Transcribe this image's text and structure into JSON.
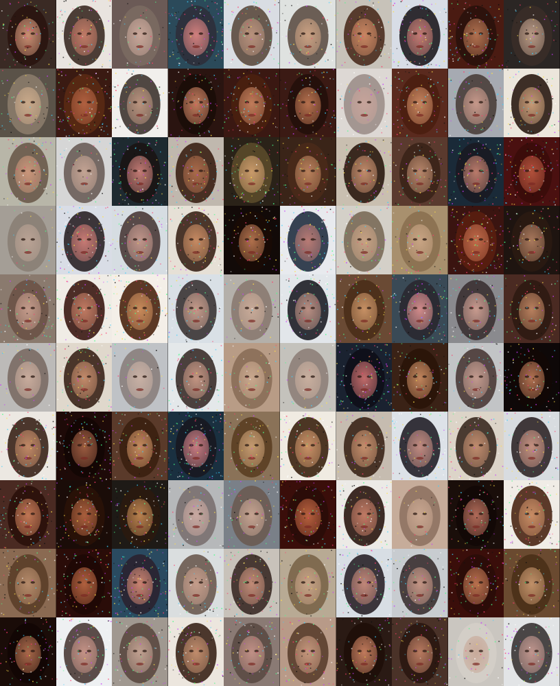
{
  "grid": {
    "rows": 10,
    "columns": 10,
    "tiles": [
      {
        "bg": "#3a2a24",
        "skin": "#c98e72",
        "hair": "#2a1410",
        "noise": 0.55
      },
      {
        "bg": "#e9e4df",
        "skin": "#c07a66",
        "hair": "#3b2a23",
        "noise": 0.6
      },
      {
        "bg": "#6b5a56",
        "skin": "#c9a79a",
        "hair": "#7b6a62",
        "noise": 0.25
      },
      {
        "bg": "#2b4a5a",
        "skin": "#d07f7d",
        "hair": "#2e2f3a",
        "noise": 0.7
      },
      {
        "bg": "#d9dde3",
        "skin": "#b8917c",
        "hair": "#5b4a3e",
        "noise": 0.45
      },
      {
        "bg": "#dfe2e0",
        "skin": "#c9a082",
        "hair": "#5e5046",
        "noise": 0.35
      },
      {
        "bg": "#c7c2b9",
        "skin": "#c98662",
        "hair": "#4a2c1e",
        "noise": 0.5
      },
      {
        "bg": "#d8dde6",
        "skin": "#c27a72",
        "hair": "#1e1a1e",
        "noise": 0.65
      },
      {
        "bg": "#4a1b12",
        "skin": "#b0704f",
        "hair": "#2a120c",
        "noise": 0.75
      },
      {
        "bg": "#2b2624",
        "skin": "#b99a86",
        "hair": "#3a2e28",
        "noise": 0.3
      },
      {
        "bg": "#5a5248",
        "skin": "#c9a98a",
        "hair": "#8a7b6a",
        "noise": 0.35
      },
      {
        "bg": "#3a1a12",
        "skin": "#b06040",
        "hair": "#5a2a14",
        "noise": 0.8
      },
      {
        "bg": "#f1efec",
        "skin": "#b9937e",
        "hair": "#3e3430",
        "noise": 0.45
      },
      {
        "bg": "#2a1410",
        "skin": "#c07a5c",
        "hair": "#1a0c08",
        "noise": 0.6
      },
      {
        "bg": "#3a1812",
        "skin": "#c07c5a",
        "hair": "#4a2010",
        "noise": 0.7
      },
      {
        "bg": "#3b1a14",
        "skin": "#b5704e",
        "hair": "#24100a",
        "noise": 0.55
      },
      {
        "bg": "#ddd8d4",
        "skin": "#c6a39a",
        "hair": "#9c8f89",
        "noise": 0.3
      },
      {
        "bg": "#5a2a1e",
        "skin": "#c6845e",
        "hair": "#4a1e10",
        "noise": 0.55
      },
      {
        "bg": "#a6aab2",
        "skin": "#c6988a",
        "hair": "#4a3e3a",
        "noise": 0.4
      },
      {
        "bg": "#ece6dc",
        "skin": "#c69a76",
        "hair": "#2a1a12",
        "noise": 0.45
      },
      {
        "bg": "#b8b6a8",
        "skin": "#c9957a",
        "hair": "#6a5a4a",
        "noise": 0.5
      },
      {
        "bg": "#d6d6d6",
        "skin": "#c3a393",
        "hair": "#6a5d58",
        "noise": 0.25
      },
      {
        "bg": "#1e2a30",
        "skin": "#c27a74",
        "hair": "#1a1414",
        "noise": 0.7
      },
      {
        "bg": "#c0b8ae",
        "skin": "#a96a4a",
        "hair": "#3a2014",
        "noise": 0.55
      },
      {
        "bg": "#2a2218",
        "skin": "#c99a6a",
        "hair": "#5a4a2a",
        "noise": 0.6
      },
      {
        "bg": "#3a2418",
        "skin": "#b9815c",
        "hair": "#4a2a1a",
        "noise": 0.5
      },
      {
        "bg": "#c9bfb0",
        "skin": "#c08a6a",
        "hair": "#2a1810",
        "noise": 0.5
      },
      {
        "bg": "#5a3a2e",
        "skin": "#b6866a",
        "hair": "#3a2418",
        "noise": 0.55
      },
      {
        "bg": "#1a2a38",
        "skin": "#b97a6a",
        "hair": "#1a1a22",
        "noise": 0.7
      },
      {
        "bg": "#4a1010",
        "skin": "#b0503a",
        "hair": "#3a0c0a",
        "noise": 0.7
      },
      {
        "bg": "#a49e96",
        "skin": "#b9a294",
        "hair": "#8a7e74",
        "noise": 0.1
      },
      {
        "bg": "#d9dde6",
        "skin": "#c87a74",
        "hair": "#2a2226",
        "noise": 0.65
      },
      {
        "bg": "#d6dde2",
        "skin": "#c0958a",
        "hair": "#4a3a38",
        "noise": 0.5
      },
      {
        "bg": "#e6e0d6",
        "skin": "#c68a62",
        "hair": "#3a2418",
        "noise": 0.55
      },
      {
        "bg": "#120a08",
        "skin": "#b0704c",
        "hair": "#1a0a06",
        "noise": 0.6
      },
      {
        "bg": "#e8eaee",
        "skin": "#b87a74",
        "hair": "#223040",
        "noise": 0.6
      },
      {
        "bg": "#d4d0c8",
        "skin": "#c6a184",
        "hair": "#7a6a58",
        "noise": 0.35
      },
      {
        "bg": "#a8906e",
        "skin": "#c8a484",
        "hair": "#8a7050",
        "noise": 0.35
      },
      {
        "bg": "#3a1410",
        "skin": "#c06a4a",
        "hair": "#5a1e10",
        "noise": 0.8
      },
      {
        "bg": "#1e1410",
        "skin": "#a8785c",
        "hair": "#2a1a12",
        "noise": 0.5
      },
      {
        "bg": "#8a7a6e",
        "skin": "#c39a8a",
        "hair": "#6a5246",
        "noise": 0.55
      },
      {
        "bg": "#f0ece6",
        "skin": "#c07a62",
        "hair": "#3a1812",
        "noise": 0.65
      },
      {
        "bg": "#f4efe8",
        "skin": "#c88a5a",
        "hair": "#4a2410",
        "noise": 0.65
      },
      {
        "bg": "#d9e0e6",
        "skin": "#c49a8a",
        "hair": "#3a3434",
        "noise": 0.45
      },
      {
        "bg": "#b4b0aa",
        "skin": "#c8aa98",
        "hair": "#8a7a70",
        "noise": 0.3
      },
      {
        "bg": "#e2e6ea",
        "skin": "#b88e82",
        "hair": "#1e1e26",
        "noise": 0.5
      },
      {
        "bg": "#6a4a34",
        "skin": "#c69064",
        "hair": "#4a2e18",
        "noise": 0.45
      },
      {
        "bg": "#3a4a56",
        "skin": "#d08a8a",
        "hair": "#2a2830",
        "noise": 0.65
      },
      {
        "bg": "#8a8a8e",
        "skin": "#c79a8e",
        "hair": "#3a3032",
        "noise": 0.5
      },
      {
        "bg": "#4a2a22",
        "skin": "#b8805e",
        "hair": "#2e1a12",
        "noise": 0.45
      },
      {
        "bg": "#bcbab8",
        "skin": "#c8ab9c",
        "hair": "#7a6c64",
        "noise": 0.2
      },
      {
        "bg": "#e0d8cc",
        "skin": "#c28a6a",
        "hair": "#3a2418",
        "noise": 0.55
      },
      {
        "bg": "#bfc2c6",
        "skin": "#c8b0a4",
        "hair": "#8a807c",
        "noise": 0.15
      },
      {
        "bg": "#e4e8ea",
        "skin": "#c29482",
        "hair": "#3a2e2a",
        "noise": 0.5
      },
      {
        "bg": "#b89c86",
        "skin": "#c9a88e",
        "hair": "#8a6e58",
        "noise": 0.3
      },
      {
        "bg": "#c4c2bc",
        "skin": "#c8ae9e",
        "hair": "#8e8078",
        "noise": 0.15
      },
      {
        "bg": "#1a2230",
        "skin": "#c06a6a",
        "hair": "#0e0e18",
        "noise": 0.85
      },
      {
        "bg": "#3a2216",
        "skin": "#c0845c",
        "hair": "#2a1408",
        "noise": 0.5
      },
      {
        "bg": "#c2c4c6",
        "skin": "#c29a8e",
        "hair": "#4a3a36",
        "noise": 0.4
      },
      {
        "bg": "#0e0808",
        "skin": "#b07050",
        "hair": "#120806",
        "noise": 0.7
      },
      {
        "bg": "#ece8e2",
        "skin": "#c08866",
        "hair": "#3a2218",
        "noise": 0.55
      },
      {
        "bg": "#1e0a08",
        "skin": "#9a5a40",
        "hair": "#120604",
        "noise": 0.75
      },
      {
        "bg": "#5a3a2a",
        "skin": "#c48a5e",
        "hair": "#3a2010",
        "noise": 0.6
      },
      {
        "bg": "#1a3040",
        "skin": "#c67a80",
        "hair": "#181820",
        "noise": 0.8
      },
      {
        "bg": "#8a7258",
        "skin": "#c49a70",
        "hair": "#5a3e22",
        "noise": 0.45
      },
      {
        "bg": "#f0ebe2",
        "skin": "#c89066",
        "hair": "#3a2210",
        "noise": 0.6
      },
      {
        "bg": "#c6bcb0",
        "skin": "#c48e6c",
        "hair": "#3a2418",
        "noise": 0.4
      },
      {
        "bg": "#dde2e8",
        "skin": "#c08a80",
        "hair": "#222028",
        "noise": 0.55
      },
      {
        "bg": "#dcd4c8",
        "skin": "#c08c6e",
        "hair": "#3a2a20",
        "noise": 0.45
      },
      {
        "bg": "#d8dce0",
        "skin": "#c49080",
        "hair": "#302628",
        "noise": 0.45
      },
      {
        "bg": "#4a2a22",
        "skin": "#c07654",
        "hair": "#2a100a",
        "noise": 0.65
      },
      {
        "bg": "#1a0c08",
        "skin": "#a85e3c",
        "hair": "#2a1208",
        "noise": 0.7
      },
      {
        "bg": "#1e1a16",
        "skin": "#b8804e",
        "hair": "#2a1a0e",
        "noise": 0.65
      },
      {
        "bg": "#b6b8ba",
        "skin": "#c8a8a0",
        "hair": "#7a7070",
        "noise": 0.35
      },
      {
        "bg": "#7a8088",
        "skin": "#c4a290",
        "hair": "#6a5a52",
        "noise": 0.4
      },
      {
        "bg": "#3a0e0a",
        "skin": "#b8603e",
        "hair": "#2a0c08",
        "noise": 0.75
      },
      {
        "bg": "#eceae6",
        "skin": "#c07a64",
        "hair": "#2a1610",
        "noise": 0.6
      },
      {
        "bg": "#c6ac9a",
        "skin": "#c8a690",
        "hair": "#8e7262",
        "noise": 0.15
      },
      {
        "bg": "#1a0e0a",
        "skin": "#b06a58",
        "hair": "#120806",
        "noise": 0.65
      },
      {
        "bg": "#f0ece6",
        "skin": "#c88c64",
        "hair": "#4a2614",
        "noise": 0.55
      },
      {
        "bg": "#8a6a52",
        "skin": "#b48a6a",
        "hair": "#5a3e28",
        "noise": 0.45
      },
      {
        "bg": "#2a0c08",
        "skin": "#b0603e",
        "hair": "#1e0806",
        "noise": 0.75
      },
      {
        "bg": "#2a4a60",
        "skin": "#c88270",
        "hair": "#2a2230",
        "noise": 0.8
      },
      {
        "bg": "#dadedf",
        "skin": "#c49c8a",
        "hair": "#6a5a50",
        "noise": 0.45
      },
      {
        "bg": "#c8c2ba",
        "skin": "#c08a76",
        "hair": "#3a2a26",
        "noise": 0.6
      },
      {
        "bg": "#b8aa94",
        "skin": "#c6a286",
        "hair": "#7a6448",
        "noise": 0.35
      },
      {
        "bg": "#d8dee4",
        "skin": "#c08678",
        "hair": "#2a2228",
        "noise": 0.55
      },
      {
        "bg": "#c8ccd0",
        "skin": "#c29484",
        "hair": "#3a3030",
        "noise": 0.5
      },
      {
        "bg": "#3a0e0a",
        "skin": "#b8704e",
        "hair": "#2a0c08",
        "noise": 0.7
      },
      {
        "bg": "#6a4a30",
        "skin": "#c09068",
        "hair": "#4a3018",
        "noise": 0.45
      },
      {
        "bg": "#1a0c08",
        "skin": "#a8684a",
        "hair": "#120604",
        "noise": 0.6
      },
      {
        "bg": "#eef0f2",
        "skin": "#c49286",
        "hair": "#4a3a36",
        "noise": 0.5
      },
      {
        "bg": "#a09890",
        "skin": "#c0a090",
        "hair": "#5a4840",
        "noise": 0.45
      },
      {
        "bg": "#ece6de",
        "skin": "#c08c6c",
        "hair": "#3a2418",
        "noise": 0.55
      },
      {
        "bg": "#8a7a74",
        "skin": "#c09086",
        "hair": "#5a4a44",
        "noise": 0.55
      },
      {
        "bg": "#b89a88",
        "skin": "#c4967c",
        "hair": "#5a3e2e",
        "noise": 0.45
      },
      {
        "bg": "#2a1a14",
        "skin": "#c07a5c",
        "hair": "#1e0e08",
        "noise": 0.55
      },
      {
        "bg": "#4a3228",
        "skin": "#b87a60",
        "hair": "#2a1610",
        "noise": 0.55
      },
      {
        "bg": "#cac6c0",
        "skin": "#c8aa9a",
        "hair": "#d4cec8",
        "noise": 0.3
      },
      {
        "bg": "#e2e4e6",
        "skin": "#c0968e",
        "hair": "#3a3434",
        "noise": 0.45
      }
    ]
  }
}
